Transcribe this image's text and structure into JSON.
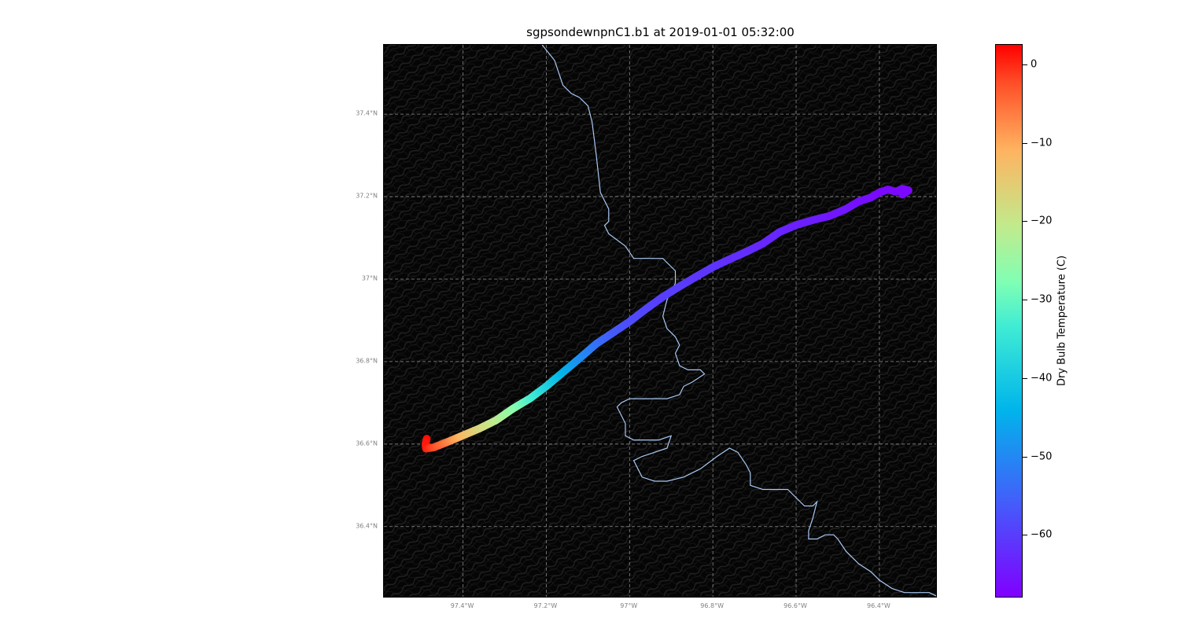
{
  "title": "sgpsondewnpnC1.b1 at 2019-01-01 05:32:00",
  "map": {
    "extent": {
      "lon": [
        -97.59,
        -96.26
      ],
      "lat": [
        36.226,
        37.568
      ]
    },
    "background": "hillshade-terrain",
    "gridlines": true,
    "lat_ticks": [
      {
        "label": "37.4°N",
        "value": 37.4
      },
      {
        "label": "37.2°N",
        "value": 37.2
      },
      {
        "label": "37°N",
        "value": 37.0
      },
      {
        "label": "36.8°N",
        "value": 36.8
      },
      {
        "label": "36.6°N",
        "value": 36.6
      },
      {
        "label": "36.4°N",
        "value": 36.4
      }
    ],
    "lon_ticks": [
      {
        "label": "97.4°W",
        "value": -97.4
      },
      {
        "label": "97.2°W",
        "value": -97.2
      },
      {
        "label": "97°W",
        "value": -97.0
      },
      {
        "label": "96.8°W",
        "value": -96.8
      },
      {
        "label": "96.6°W",
        "value": -96.6
      },
      {
        "label": "96.4°W",
        "value": -96.4
      }
    ],
    "state_boundary": [
      [
        -97.21,
        37.568
      ],
      [
        -97.18,
        37.53
      ],
      [
        -97.16,
        37.47
      ],
      [
        -97.14,
        37.45
      ],
      [
        -97.12,
        37.44
      ],
      [
        -97.1,
        37.42
      ],
      [
        -97.09,
        37.38
      ],
      [
        -97.08,
        37.3
      ],
      [
        -97.07,
        37.21
      ],
      [
        -97.05,
        37.17
      ],
      [
        -97.05,
        37.14
      ],
      [
        -97.06,
        37.13
      ],
      [
        -97.05,
        37.11
      ],
      [
        -97.01,
        37.08
      ],
      [
        -96.99,
        37.05
      ],
      [
        -96.92,
        37.05
      ],
      [
        -96.91,
        37.04
      ],
      [
        -96.89,
        37.02
      ],
      [
        -96.89,
        36.99
      ],
      [
        -96.91,
        36.95
      ],
      [
        -96.92,
        36.91
      ],
      [
        -96.91,
        36.88
      ],
      [
        -96.89,
        36.86
      ],
      [
        -96.88,
        36.84
      ],
      [
        -96.89,
        36.82
      ],
      [
        -96.88,
        36.79
      ],
      [
        -96.86,
        36.78
      ],
      [
        -96.83,
        36.78
      ],
      [
        -96.82,
        36.77
      ],
      [
        -96.85,
        36.75
      ],
      [
        -96.87,
        36.74
      ],
      [
        -96.88,
        36.72
      ],
      [
        -96.91,
        36.71
      ],
      [
        -96.95,
        36.71
      ],
      [
        -96.98,
        36.71
      ],
      [
        -97.0,
        36.71
      ],
      [
        -97.02,
        36.7
      ],
      [
        -97.03,
        36.69
      ],
      [
        -97.02,
        36.67
      ],
      [
        -97.01,
        36.65
      ],
      [
        -97.01,
        36.62
      ],
      [
        -96.99,
        36.61
      ],
      [
        -96.96,
        36.61
      ],
      [
        -96.93,
        36.61
      ],
      [
        -96.9,
        36.62
      ],
      [
        -96.91,
        36.59
      ],
      [
        -96.94,
        36.58
      ],
      [
        -96.97,
        36.57
      ],
      [
        -96.99,
        36.56
      ],
      [
        -96.98,
        36.54
      ],
      [
        -96.97,
        36.52
      ],
      [
        -96.94,
        36.51
      ],
      [
        -96.91,
        36.51
      ],
      [
        -96.87,
        36.52
      ],
      [
        -96.83,
        36.54
      ],
      [
        -96.79,
        36.57
      ],
      [
        -96.76,
        36.59
      ],
      [
        -96.74,
        36.58
      ],
      [
        -96.72,
        36.55
      ],
      [
        -96.71,
        36.53
      ],
      [
        -96.71,
        36.5
      ],
      [
        -96.68,
        36.49
      ],
      [
        -96.62,
        36.49
      ],
      [
        -96.6,
        36.47
      ],
      [
        -96.58,
        36.45
      ],
      [
        -96.56,
        36.45
      ],
      [
        -96.55,
        36.46
      ],
      [
        -96.56,
        36.42
      ],
      [
        -96.57,
        36.39
      ],
      [
        -96.57,
        36.37
      ],
      [
        -96.55,
        36.37
      ],
      [
        -96.53,
        36.38
      ],
      [
        -96.51,
        36.38
      ],
      [
        -96.5,
        36.37
      ],
      [
        -96.48,
        36.34
      ],
      [
        -96.45,
        36.31
      ],
      [
        -96.42,
        36.29
      ],
      [
        -96.4,
        36.27
      ],
      [
        -96.37,
        36.25
      ],
      [
        -96.34,
        36.24
      ],
      [
        -96.28,
        36.24
      ],
      [
        -96.26,
        36.23
      ]
    ],
    "colors": {
      "boundary": "#a9c8f2",
      "grid": "#8a8a8a",
      "background": "#050505"
    }
  },
  "track": {
    "variable": "Dry Bulb Temperature (C)",
    "points": [
      {
        "lon": -97.487,
        "lat": 36.613,
        "temp": 2
      },
      {
        "lon": -97.49,
        "lat": 36.6,
        "temp": 1
      },
      {
        "lon": -97.489,
        "lat": 36.589,
        "temp": 1
      },
      {
        "lon": -97.47,
        "lat": 36.592,
        "temp": -2
      },
      {
        "lon": -97.44,
        "lat": 36.604,
        "temp": -6
      },
      {
        "lon": -97.4,
        "lat": 36.621,
        "temp": -12
      },
      {
        "lon": -97.36,
        "lat": 36.638,
        "temp": -17
      },
      {
        "lon": -97.32,
        "lat": 36.658,
        "temp": -21
      },
      {
        "lon": -97.28,
        "lat": 36.686,
        "temp": -26
      },
      {
        "lon": -97.24,
        "lat": 36.71,
        "temp": -32
      },
      {
        "lon": -97.2,
        "lat": 36.74,
        "temp": -38
      },
      {
        "lon": -97.16,
        "lat": 36.774,
        "temp": -44
      },
      {
        "lon": -97.12,
        "lat": 36.808,
        "temp": -49
      },
      {
        "lon": -97.08,
        "lat": 36.843,
        "temp": -53
      },
      {
        "lon": -97.04,
        "lat": 36.87,
        "temp": -56
      },
      {
        "lon": -97.0,
        "lat": 36.897,
        "temp": -58
      },
      {
        "lon": -96.96,
        "lat": 36.928,
        "temp": -59
      },
      {
        "lon": -96.92,
        "lat": 36.957,
        "temp": -60
      },
      {
        "lon": -96.88,
        "lat": 36.982,
        "temp": -60
      },
      {
        "lon": -96.84,
        "lat": 37.006,
        "temp": -61
      },
      {
        "lon": -96.8,
        "lat": 37.029,
        "temp": -61
      },
      {
        "lon": -96.76,
        "lat": 37.048,
        "temp": -62
      },
      {
        "lon": -96.72,
        "lat": 37.066,
        "temp": -62
      },
      {
        "lon": -96.68,
        "lat": 37.086,
        "temp": -63
      },
      {
        "lon": -96.64,
        "lat": 37.114,
        "temp": -63
      },
      {
        "lon": -96.6,
        "lat": 37.131,
        "temp": -64
      },
      {
        "lon": -96.56,
        "lat": 37.143,
        "temp": -64
      },
      {
        "lon": -96.52,
        "lat": 37.153,
        "temp": -65
      },
      {
        "lon": -96.48,
        "lat": 37.17,
        "temp": -65
      },
      {
        "lon": -96.45,
        "lat": 37.188,
        "temp": -66
      },
      {
        "lon": -96.42,
        "lat": 37.198,
        "temp": -66
      },
      {
        "lon": -96.4,
        "lat": 37.21,
        "temp": -67
      },
      {
        "lon": -96.38,
        "lat": 37.217,
        "temp": -67
      },
      {
        "lon": -96.36,
        "lat": 37.212,
        "temp": -67
      },
      {
        "lon": -96.345,
        "lat": 37.219,
        "temp": -67
      },
      {
        "lon": -96.33,
        "lat": 37.215,
        "temp": -67
      },
      {
        "lon": -96.345,
        "lat": 37.205,
        "temp": -67
      }
    ]
  },
  "colorbar": {
    "label": "Dry Bulb Temperature (C)",
    "range": [
      -68,
      2.6
    ],
    "colormap": "rainbow",
    "ticks": [
      {
        "label": "0",
        "value": 0
      },
      {
        "label": "−10",
        "value": -10
      },
      {
        "label": "−20",
        "value": -20
      },
      {
        "label": "−30",
        "value": -30
      },
      {
        "label": "−40",
        "value": -40
      },
      {
        "label": "−50",
        "value": -50
      },
      {
        "label": "−60",
        "value": -60
      }
    ]
  }
}
